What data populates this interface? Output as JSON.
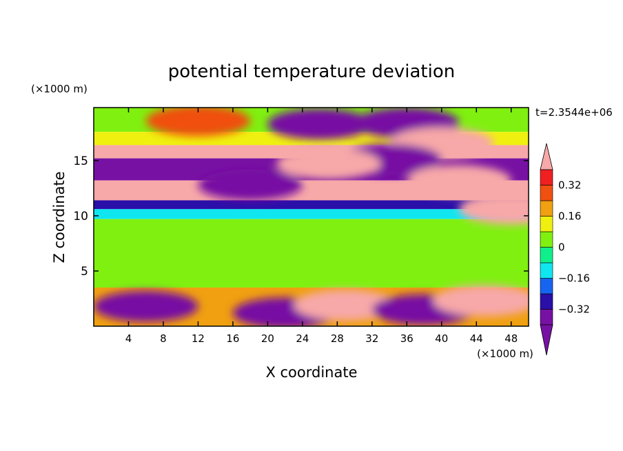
{
  "chart_data": {
    "type": "heatmap",
    "title": "potential temperature deviation",
    "xlabel": "X coordinate",
    "ylabel": "Z coordinate",
    "x_unit": "(×1000 m)",
    "y_unit": "(×1000 m)",
    "time_label": "t=2.3544e+06",
    "xlim": [
      0,
      50
    ],
    "ylim": [
      0,
      19.8
    ],
    "x_ticks": [
      4,
      8,
      12,
      16,
      20,
      24,
      28,
      32,
      36,
      40,
      44,
      48
    ],
    "y_ticks": [
      5,
      10,
      15
    ],
    "colorbar": {
      "levels": [
        -0.4,
        -0.32,
        -0.24,
        -0.16,
        -0.08,
        0,
        0.08,
        0.16,
        0.24,
        0.32,
        0.4
      ],
      "tick_labels": [
        "0.32",
        "0.16",
        "0",
        "−0.16",
        "−0.32"
      ],
      "tick_values": [
        0.32,
        0.16,
        0,
        -0.16,
        -0.32
      ],
      "over_color": "#f7a8a8",
      "under_color": "#7711a3",
      "colors": [
        "#7711a3",
        "#2a0fa8",
        "#1565f0",
        "#10e6f0",
        "#10f08a",
        "#80f010",
        "#f0f010",
        "#f0a010",
        "#f05010",
        "#f02020"
      ]
    },
    "bands": [
      {
        "z": [
          17.6,
          19.8
        ],
        "value": 0.02
      },
      {
        "z": [
          16.4,
          17.6
        ],
        "value": 0.1
      },
      {
        "z": [
          15.2,
          16.4
        ],
        "value": 0.45
      },
      {
        "z": [
          13.2,
          15.2
        ],
        "value": -0.45
      },
      {
        "z": [
          11.4,
          13.2
        ],
        "value": 0.45
      },
      {
        "z": [
          10.6,
          11.4
        ],
        "value": -0.25
      },
      {
        "z": [
          9.7,
          10.6
        ],
        "value": -0.1
      },
      {
        "z": [
          3.5,
          9.7
        ],
        "value": 0.05
      },
      {
        "z": [
          0,
          3.5
        ],
        "value": 0.2
      }
    ],
    "features": [
      {
        "x": 12,
        "z": 18.6,
        "value": 0.3
      },
      {
        "x": 26,
        "z": 18.3,
        "value": -0.45
      },
      {
        "x": 36,
        "z": 18.4,
        "value": -0.45
      },
      {
        "x": 40,
        "z": 16.6,
        "value": 0.45
      },
      {
        "x": 34,
        "z": 15.1,
        "value": -0.45
      },
      {
        "x": 27,
        "z": 14.7,
        "value": 0.45
      },
      {
        "x": 42,
        "z": 13.2,
        "value": 0.45
      },
      {
        "x": 18,
        "z": 12.8,
        "value": -0.45
      },
      {
        "x": 48,
        "z": 10.6,
        "value": 0.45
      },
      {
        "x": 6,
        "z": 1.8,
        "value": -0.45
      },
      {
        "x": 22,
        "z": 1.2,
        "value": -0.45
      },
      {
        "x": 29,
        "z": 1.9,
        "value": 0.45
      },
      {
        "x": 38,
        "z": 1.5,
        "value": -0.45
      },
      {
        "x": 45,
        "z": 2.3,
        "value": 0.4
      }
    ]
  }
}
